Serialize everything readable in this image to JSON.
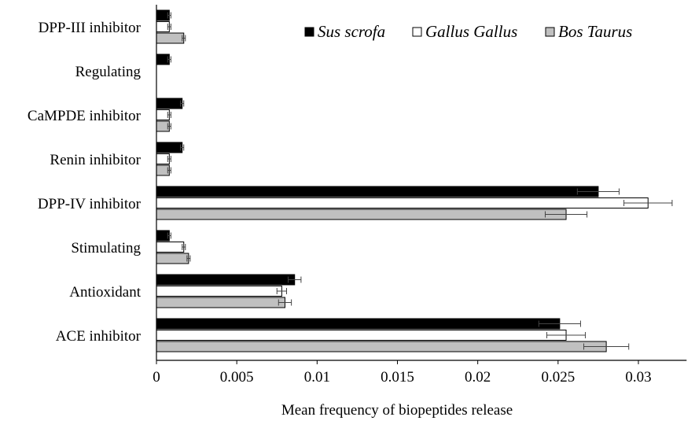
{
  "chart_data": {
    "type": "bar",
    "orientation": "horizontal",
    "categories": [
      "DPP-III inhibitor",
      "Regulating",
      "CaMPDE inhibitor",
      "Renin inhibitor",
      "DPP-IV inhibitor",
      "Stimulating",
      "Antioxidant",
      "ACE inhibitor"
    ],
    "series": [
      {
        "name": "Sus scrofa",
        "color": "#000000",
        "values": [
          0.0008,
          0.0008,
          0.0016,
          0.0016,
          0.0275,
          0.0008,
          0.0086,
          0.0251
        ],
        "errors": [
          0.0001,
          0.0001,
          0.0001,
          0.0001,
          0.0013,
          0.0001,
          0.0004,
          0.0013
        ]
      },
      {
        "name": "Gallus Gallus",
        "color": "#ffffff",
        "values": [
          0.0008,
          0,
          0.0008,
          0.0008,
          0.0306,
          0.0017,
          0.0078,
          0.0255
        ],
        "errors": [
          0.0001,
          0,
          0.0001,
          0.0001,
          0.0015,
          0.0001,
          0.0003,
          0.0012
        ]
      },
      {
        "name": "Bos Taurus",
        "color": "#c0c0c0",
        "values": [
          0.0017,
          0,
          0.0008,
          0.0008,
          0.0255,
          0.002,
          0.008,
          0.028
        ],
        "errors": [
          0.0001,
          0,
          0.0001,
          0.0001,
          0.0013,
          0.0001,
          0.0004,
          0.0014
        ]
      }
    ],
    "xlim": [
      0,
      0.033
    ],
    "xticks": [
      "0",
      "0.005",
      "0.01",
      "0.015",
      "0.02",
      "0.025",
      "0.03"
    ],
    "xtick_values": [
      0,
      0.005,
      0.01,
      0.015,
      0.02,
      0.025,
      0.03
    ],
    "xlabel": "Mean frequency of biopeptides release",
    "ylabel": "",
    "title": "",
    "grid": false,
    "legend_position": "top-right"
  }
}
